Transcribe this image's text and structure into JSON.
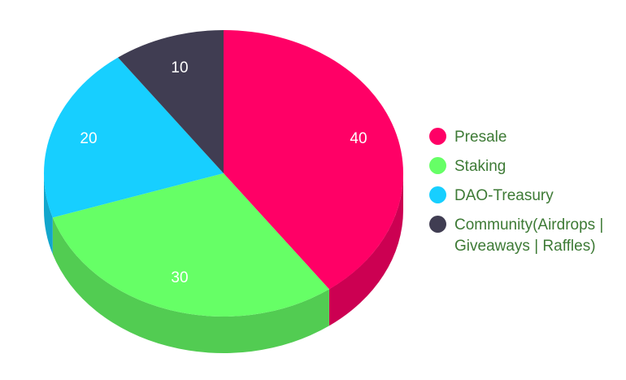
{
  "chart_data": {
    "type": "pie",
    "style": "3d",
    "categories": [
      "Presale",
      "Staking",
      "DAO-Treasury",
      "Community(Airdrops | Giveaways | Raffles)"
    ],
    "values": [
      40,
      30,
      20,
      10
    ],
    "data_labels": [
      "40",
      "30",
      "20",
      "10"
    ],
    "colors": [
      "#ff0066",
      "#66ff66",
      "#17cfff",
      "#403d52"
    ],
    "side_colors": [
      "#cc0052",
      "#52cc52",
      "#12a6cc",
      "#333142"
    ],
    "legend_position": "right",
    "legend": {
      "items": [
        {
          "label": "Presale",
          "color": "#ff0066"
        },
        {
          "label": "Staking",
          "color": "#66ff66"
        },
        {
          "label": "DAO-Treasury",
          "color": "#17cfff"
        },
        {
          "label": "Community(Airdrops | Giveaways | Raffles)",
          "color": "#403d52"
        }
      ]
    }
  }
}
